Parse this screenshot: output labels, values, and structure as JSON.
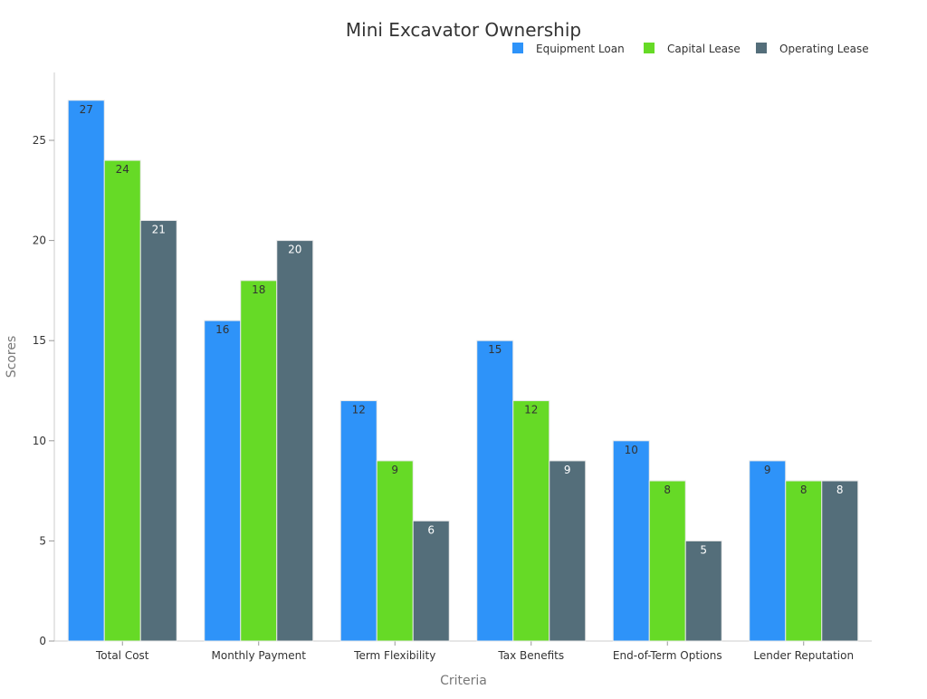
{
  "chart_data": {
    "type": "bar",
    "title": "Mini Excavator Ownership",
    "xlabel": "Criteria",
    "ylabel": "Scores",
    "ylim": [
      0,
      28.4
    ],
    "yticks": [
      0,
      5,
      10,
      15,
      20,
      25
    ],
    "grid": false,
    "legend_position": "top-right",
    "categories": [
      "Total Cost",
      "Monthly Payment",
      "Term Flexibility",
      "Tax Benefits",
      "End-of-Term Options",
      "Lender Reputation"
    ],
    "series": [
      {
        "name": "Equipment Loan",
        "color": "#2e93f9",
        "label_color": "#333333",
        "values": [
          27,
          16,
          12,
          15,
          10,
          9
        ]
      },
      {
        "name": "Capital Lease",
        "color": "#66da26",
        "label_color": "#333333",
        "values": [
          24,
          18,
          9,
          12,
          8,
          8
        ]
      },
      {
        "name": "Operating Lease",
        "color": "#546e7a",
        "label_color": "#ffffff",
        "values": [
          21,
          20,
          6,
          9,
          5,
          8
        ]
      }
    ]
  }
}
